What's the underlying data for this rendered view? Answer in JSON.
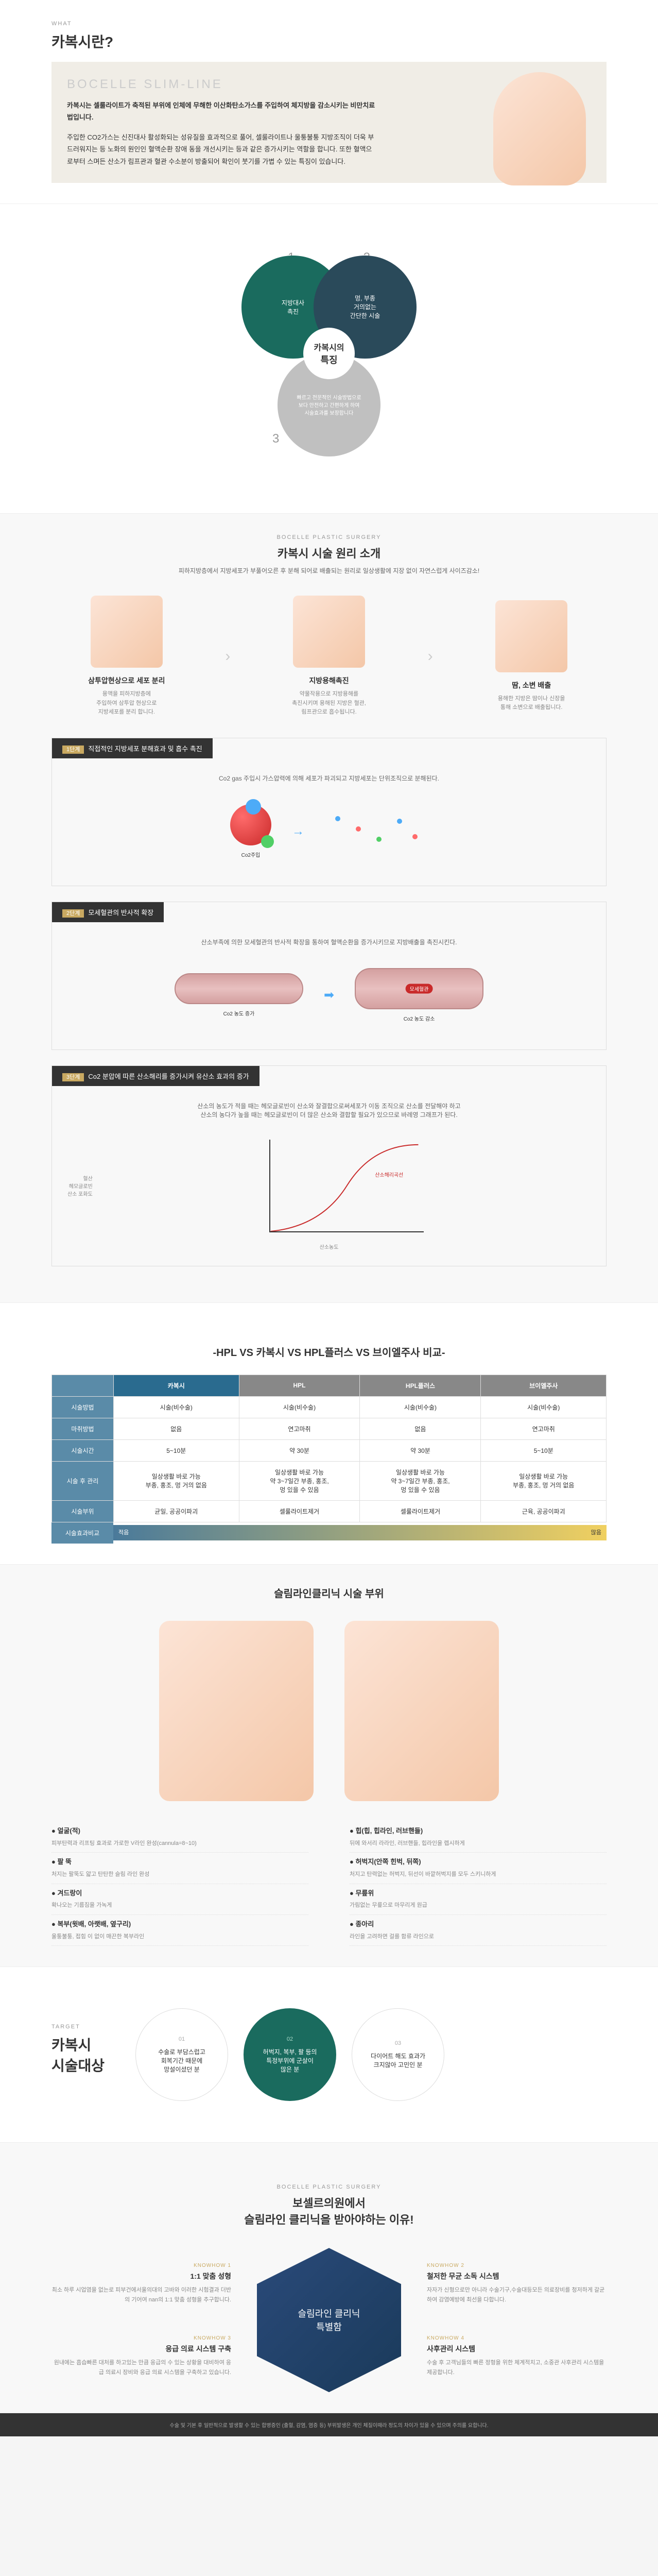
{
  "s1": {
    "tag": "WHAT",
    "title": "카복시란?",
    "brand": "BOCELLE SLIM-LINE",
    "lead": "카복시는 셀룰라이트가 축적된 부위에 인체에 무해한 이산화탄소가스를 주입하여 체지방을 감소시키는 비만치료법입니다.",
    "desc": "주입한 CO2가스는 신진대사 활성화되는 성유질을 효과적으로 풀어, 셀룰라이트나 울퉁불퉁 지방조직이 더욱 부드러워지는 등 노화의 원인인 혈액순환 장애 동을 개선시키는 등과 같은 증가시키는 역할을 합니다. 또한 혈액으로부터 스며든 산소가 림프관과 혈관 수소분이 방출되어 확인이 붓기를 가볍 수 있는 특징이 있습니다."
  },
  "venn": {
    "c1": "지방대사\n촉진",
    "c2": "멍, 부종\n거의없는\n간단한 시술",
    "c3": "빠르고 전문적인 시술방법으로\n보다 안전하고 간편하게 하여\n시술효과를 보장합니다",
    "center_t": "카복시의",
    "center_b": "특징"
  },
  "principle": {
    "tag": "BOCELLE PLASTIC SURGERY",
    "title": "카복시 시술 원리 소개",
    "sub": "피하지방층에서 지방세포가 부풀어오른 후 분해 되어로 배출되는 원리로 일상생활에 지장 없이 자연스럽게 사이즈감소!",
    "items": [
      {
        "t": "삼투압현상으로 세포 분리",
        "d": "용액을 피하지방층에\n주입하여 삼투압 현상으로\n지방세포를 분리 합니다."
      },
      {
        "t": "지방용해촉진",
        "d": "약물작용으로 지방용해를\n촉진시키며 용해된 지방은 혈관,\n림프관으로 흡수됩니다."
      },
      {
        "t": "땀, 소변 배출",
        "d": "용해한 지방은 땀이나 신장을\n통해 소변으로 배출됩니다."
      }
    ]
  },
  "stages": [
    {
      "num": "1단계",
      "title": "직접적인 지방세포 분해효과 및 흡수 촉진",
      "desc": "Co2 gas 주입시 가스압력에 의해 세포가 파괴되고 지방세포는 단위조직으로 분해된다.",
      "label_l": "Co2주입",
      "label_r": ""
    },
    {
      "num": "2단계",
      "title": "모세혈관의 반사적 확장",
      "desc": "산소부족에 의한 모세혈관의 반사적 확장을 통하여 혈액순환을 증가시키므로 지방배출을 촉진시킨다.",
      "label_l": "Co2 농도 증가",
      "label_r": "Co2 농도 감소",
      "center": "모세혈관"
    },
    {
      "num": "3단계",
      "title": "Co2 분압에 따른 산소해리를 증가시켜 유산소 효과의 증가",
      "desc": "산소의 농도가 적을 때는 헤모글로빈이 산소와 잘결합으로써세포가 이동 조직으로 산소를 전달해야 하고\n산소의 농다가 높을 때는 헤모글로빈이 더 많은 산소와 결합할 필요가 있으므로 바레영 그래프가 된다.",
      "graph_y": "혈산\n헤모글로빈\n산소 포화도",
      "graph_x": "산소농도",
      "graph_label": "산소해리곡선"
    }
  ],
  "compare": {
    "title": "-HPL VS 카복시 VS HPL플러스 VS 브이엘주사 비교-",
    "cols": [
      "카복시",
      "HPL",
      "HPL플러스",
      "브이엘주사"
    ],
    "col_colors": [
      "#2a6b8f",
      "#888888",
      "#888888",
      "#888888"
    ],
    "rows": [
      {
        "label": "시술방법",
        "cells": [
          "시술(비수술)",
          "시술(비수술)",
          "시술(비수술)",
          "시술(비수술)"
        ]
      },
      {
        "label": "마취방법",
        "cells": [
          "없음",
          "연고마취",
          "없음",
          "연고마취"
        ]
      },
      {
        "label": "시술시간",
        "cells": [
          "5~10분",
          "약 30분",
          "약 30분",
          "5~10분"
        ]
      },
      {
        "label": "시술 후 관리",
        "cells": [
          "일상생활 바로 가능\n부종, 홍조, 멍 거의 없음",
          "일상생활 바로 가능\n약 3~7일간 부종, 홍조,\n멍 있을 수 있음",
          "일상생활 바로 가능\n약 3~7일간 부종, 홍조,\n멍 있을 수 있음",
          "일상생활 바로 가능\n부종, 홍조, 멍 거의 없음"
        ]
      },
      {
        "label": "시술부위",
        "cells": [
          "균일, 공공이파괴",
          "셀룰라이트제거",
          "셀룰라이트제거",
          "근육, 공공이파괴"
        ]
      }
    ],
    "effect_label": "시술효과비교",
    "effect_l": "적음",
    "effect_r": "많음"
  },
  "parts": {
    "title": "슬림라인클리닉 시술 부위",
    "left": [
      {
        "t": "얼굴(적)",
        "d": "피부탄력과 리프팅 효과로 가로한 V라인 완성(cannula=8~10)"
      },
      {
        "t": "팔 뚝",
        "d": "처지는 팔뚝도 얇고 탄탄한 슬림 라인 완성"
      },
      {
        "t": "겨드랑이",
        "d": "확나오는 기름짐을 가녹게"
      },
      {
        "t": "복부(윗배, 아랫배, 옆구리)",
        "d": "울퉁불퉁, 접힘 이 없이 매끈한 복부라인"
      }
    ],
    "right": [
      {
        "t": "힙(힙, 힙라인, 러브핸들)",
        "d": "뒤에 와서리 라라인, 러브핸들, 힙라인을 렙시하게"
      },
      {
        "t": "허벅지(안쪽 힌벅, 뒤쪽)",
        "d": "처지고 탄력없는 허벅지, 뒤선이 바깥허벅지를 모두 스키니하게"
      },
      {
        "t": "무릎위",
        "d": "가림없는 무릎으로 마무리게 원급"
      },
      {
        "t": "종아리",
        "d": "라인을 고려하면 걸를 함류 라인으로"
      }
    ]
  },
  "target": {
    "tag": "TARGET",
    "title": "카복시\n시술대상",
    "items": [
      {
        "num": "01",
        "t": "수술로 부담스럽고\n회복기간 때문에\n망설이셨던 분"
      },
      {
        "num": "02",
        "t": "허벅지, 복부, 팔 등의\n특정부위에 군살이\n많은 분"
      },
      {
        "num": "03",
        "t": "다이어트 해도 효과가\n크지않아 고민인 분"
      }
    ],
    "active": 1
  },
  "why": {
    "tag": "BOCELLE PLASTIC SURGERY",
    "title_1": "보셀르의원에서",
    "title_2": "슬림라인 클리닉을 받아야하는 이유!",
    "center": "슬림라인 클리닉\n특별함",
    "items": [
      {
        "tag": "KNOWHOW 1",
        "t": "1:1 맞춤 성형",
        "d": "최소 하루 시업염을 없는로 피부건에서울의대의\n고바와 이러한 시험결과 더반의 기어여 nan의 1:1 맞춤\n성형을 추구합니다."
      },
      {
        "tag": "KNOWHOW 2",
        "t": "철저한 무균 소독 시스템",
        "d": "자자가 신형으로만 아니라 수술기구,수술대등모든\n의료장비를 청저하게 갈균하여 감염예방에 최선을\n다합니다."
      },
      {
        "tag": "KNOWHOW 3",
        "t": "응급 의료 시스템 구축",
        "d": "원내에는 흡습빠른 대처를 하고있는 만큼 응급의 수\n있는 상황을 대비하여 응급 의료시 장비와 응급 의료\n시스템을 구축하고 있습니다."
      },
      {
        "tag": "KNOWHOW 4",
        "t": "사후관리 시스템",
        "d": "수술 후 고객님들의 빠른 정형을 위한 체계적치고,\n소중관 사후관리 시스템을 제공합니다."
      }
    ]
  },
  "footer": "수술 및 기본 후 일반적으로 발생할 수 있는 합병증인 (출혈, 감염, 염증 등) 부위발생은 개인 체질이때라 정도의 차이가 있을 수 있으며 주의를 요합니다."
}
